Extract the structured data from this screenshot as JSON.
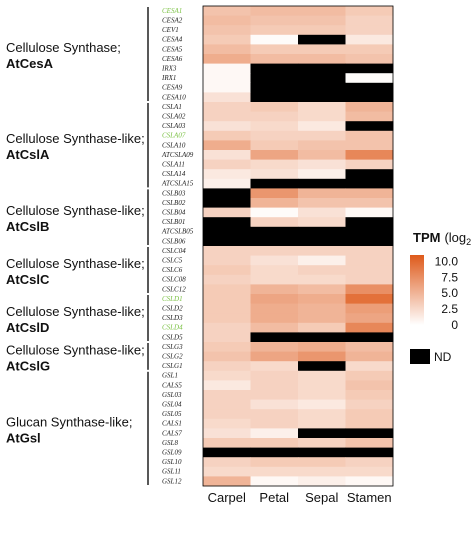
{
  "chart_data": {
    "type": "heatmap",
    "columns": [
      "Carpel",
      "Petal",
      "Sepal",
      "Stamen"
    ],
    "groups": [
      {
        "title": "Cellulose Synthase;",
        "subtitle": "AtCesA",
        "genes": [
          "CESA1",
          "CESA2",
          "CEV1",
          "CESA4",
          "CESA5",
          "CESA6",
          "IRX3",
          "IRX1",
          "CESA9",
          "CESA10"
        ]
      },
      {
        "title": "Cellulose Synthase-like;",
        "subtitle": "AtCslA",
        "genes": [
          "CSLA1",
          "CSLA02",
          "CSLA03",
          "CSLA07",
          "CSLA10",
          "ATCSLA09",
          "CSLA11",
          "CSLA14",
          "ATCSLA15"
        ]
      },
      {
        "title": "Cellulose Synthase-like;",
        "subtitle": "AtCslB",
        "genes": [
          "CSLB03",
          "CSLB02",
          "CSLB04",
          "CSLB01",
          "ATCSLB05",
          "CSLB06"
        ]
      },
      {
        "title": "Cellulose Synthase-like;",
        "subtitle": "AtCslC",
        "genes": [
          "CSLC04",
          "CSLC5",
          "CSLC6",
          "CSLC08",
          "CSLC12"
        ]
      },
      {
        "title": "Cellulose Synthase-like;",
        "subtitle": "AtCslD",
        "genes": [
          "CSLD1",
          "CSLD2",
          "CSLD3",
          "CSLD4",
          "CSLD5"
        ]
      },
      {
        "title": "Cellulose Synthase-like;",
        "subtitle": "AtCslG",
        "genes": [
          "CSLG3",
          "CSLG2",
          "CSLG1"
        ]
      },
      {
        "title": "Glucan Synthase-like;",
        "subtitle": "AtGsl",
        "genes": [
          "GSL1",
          "CALS5",
          "GSL03",
          "GSL04",
          "GSL05",
          "CALS1",
          "CALS7",
          "GSL8",
          "GSL09",
          "GSL10",
          "GSL11",
          "GSL12"
        ]
      }
    ],
    "highlighted_genes": [
      "CESA1",
      "CSLA07",
      "CSLD1",
      "CSLD4"
    ],
    "values": [
      [
        4.0,
        4.5,
        4.5,
        3.5
      ],
      [
        4.5,
        4.0,
        4.0,
        3.0
      ],
      [
        4.0,
        3.5,
        3.5,
        3.0
      ],
      [
        3.5,
        0.3,
        null,
        1.5
      ],
      [
        4.5,
        3.5,
        3.5,
        3.5
      ],
      [
        5.5,
        4.5,
        4.5,
        4.0
      ],
      [
        0.5,
        null,
        null,
        null
      ],
      [
        0.5,
        null,
        null,
        0.2
      ],
      [
        0.5,
        null,
        null,
        null
      ],
      [
        2.0,
        null,
        null,
        null
      ],
      [
        3.0,
        3.5,
        2.5,
        5.0
      ],
      [
        3.0,
        3.0,
        2.5,
        4.5
      ],
      [
        2.0,
        2.5,
        1.5,
        null
      ],
      [
        3.5,
        3.0,
        3.0,
        4.0
      ],
      [
        5.5,
        3.5,
        4.0,
        4.0
      ],
      [
        2.0,
        6.0,
        4.5,
        8.0
      ],
      [
        3.0,
        2.5,
        2.0,
        3.0
      ],
      [
        1.5,
        2.0,
        1.0,
        null
      ],
      [
        1.0,
        null,
        null,
        null
      ],
      [
        null,
        7.0,
        5.0,
        5.0
      ],
      [
        null,
        5.0,
        4.0,
        4.0
      ],
      [
        3.0,
        0.3,
        2.0,
        0.5
      ],
      [
        null,
        3.0,
        2.5,
        null
      ],
      [
        null,
        null,
        null,
        null
      ],
      [
        null,
        null,
        null,
        null
      ],
      [
        3.0,
        3.0,
        3.0,
        3.0
      ],
      [
        3.0,
        2.0,
        1.0,
        3.0
      ],
      [
        3.5,
        2.5,
        3.0,
        3.0
      ],
      [
        3.0,
        2.5,
        2.5,
        3.0
      ],
      [
        3.5,
        5.0,
        4.5,
        7.5
      ],
      [
        3.5,
        6.0,
        5.5,
        9.5
      ],
      [
        3.5,
        5.5,
        5.0,
        6.5
      ],
      [
        3.5,
        5.5,
        5.0,
        6.0
      ],
      [
        3.0,
        4.5,
        3.5,
        8.0
      ],
      [
        3.0,
        null,
        null,
        null
      ],
      [
        3.5,
        5.0,
        5.5,
        4.5
      ],
      [
        4.0,
        6.0,
        7.0,
        5.0
      ],
      [
        3.0,
        2.5,
        null,
        2.5
      ],
      [
        2.5,
        3.0,
        2.5,
        3.5
      ],
      [
        1.5,
        3.0,
        2.5,
        4.0
      ],
      [
        3.0,
        3.0,
        2.5,
        3.5
      ],
      [
        3.0,
        2.0,
        1.5,
        3.0
      ],
      [
        3.0,
        3.0,
        2.5,
        3.5
      ],
      [
        2.5,
        3.0,
        2.5,
        3.5
      ],
      [
        2.0,
        1.0,
        null,
        null
      ],
      [
        3.5,
        3.5,
        3.0,
        4.0
      ],
      [
        null,
        null,
        null,
        null
      ],
      [
        3.0,
        3.5,
        3.5,
        3.0
      ],
      [
        2.5,
        2.5,
        2.5,
        2.5
      ],
      [
        5.0,
        0.5,
        1.0,
        0.5
      ]
    ],
    "legend": {
      "title": "TPM",
      "title_suffix": "(log",
      "title_sub": "2",
      "title_close": ")",
      "ticks": [
        10.0,
        7.5,
        5.0,
        2.5,
        0
      ],
      "tick_labels": [
        "10.0",
        "7.5",
        "5.0",
        "2.5",
        "0"
      ],
      "range": [
        0,
        11
      ],
      "nd_label": "ND",
      "placement": "right"
    },
    "colors": {
      "low": "#ffffff",
      "high": "#de5a1b",
      "nd": "#000000",
      "highlight": "#7ac143",
      "gene_text": "#222222"
    }
  }
}
